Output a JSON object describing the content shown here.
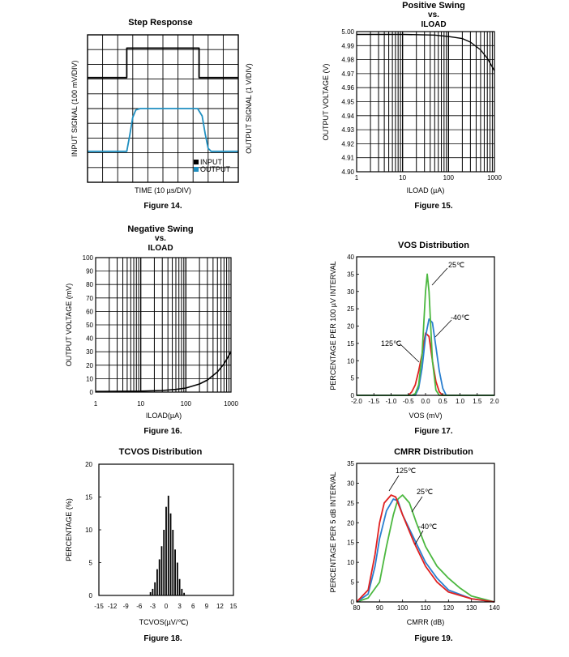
{
  "chart_data": [
    {
      "type": "line",
      "id": "fig14",
      "title": "Step Response",
      "xlabel": "TIME (10 µs/DIV)",
      "ylabel": "INPUT SIGNAL (100 mV/DIV)",
      "ylabel_right": "OUTPUT SIGNAL (1 V/DIV)",
      "figure_label": "Figure 14.",
      "xlim": [
        0,
        10
      ],
      "ylim": [
        0,
        10
      ],
      "legend": [
        "INPUT",
        "OUTPUT"
      ],
      "series": [
        {
          "name": "INPUT",
          "color": "#000000",
          "x": [
            0,
            2.6,
            2.6,
            7.4,
            7.4,
            10
          ],
          "y": [
            7.1,
            7.1,
            9.1,
            9.1,
            7.1,
            7.1
          ]
        },
        {
          "name": "OUTPUT",
          "color": "#1f8fc0",
          "x": [
            0,
            2.6,
            2.8,
            3.0,
            3.2,
            3.5,
            7.3,
            7.6,
            7.8,
            8.0,
            8.2,
            10
          ],
          "y": [
            2.1,
            2.1,
            3.2,
            4.4,
            4.9,
            5.0,
            5.0,
            4.5,
            3.3,
            2.3,
            2.1,
            2.1
          ]
        }
      ]
    },
    {
      "type": "line",
      "id": "fig15",
      "title_lines": [
        "Positive Swing",
        "vs.",
        "ILOAD"
      ],
      "xlabel": "ILOAD (µA)",
      "ylabel": "OUTPUT VOLTAGE (V)",
      "figure_label": "Figure 15.",
      "xscale": "log",
      "xlim": [
        1,
        1000
      ],
      "ylim": [
        4.9,
        5.0
      ],
      "xticks": [
        "1",
        "10",
        "100",
        "1000"
      ],
      "yticks": [
        "4.90",
        "4.91",
        "4.92",
        "4.93",
        "4.94",
        "4.95",
        "4.96",
        "4.97",
        "4.98",
        "4.99",
        "5.00"
      ],
      "series": [
        {
          "name": "swing",
          "color": "#000000",
          "x": [
            1,
            10,
            50,
            100,
            200,
            300,
            500,
            700,
            1000
          ],
          "y": [
            4.998,
            4.998,
            4.9975,
            4.9965,
            4.995,
            4.9925,
            4.987,
            4.981,
            4.972
          ]
        }
      ]
    },
    {
      "type": "line",
      "id": "fig16",
      "title_lines": [
        "Negative Swing",
        "vs.",
        "ILOAD"
      ],
      "xlabel": "ILOAD(µA)",
      "ylabel": "OUTPUT VOLTAGE (mV)",
      "figure_label": "Figure 16.",
      "xscale": "log",
      "xlim": [
        1,
        1000
      ],
      "ylim": [
        0,
        100
      ],
      "xticks": [
        "1",
        "10",
        "100",
        "1000"
      ],
      "yticks": [
        "0",
        "10",
        "20",
        "30",
        "40",
        "50",
        "60",
        "70",
        "80",
        "90",
        "100"
      ],
      "series": [
        {
          "name": "swing",
          "color": "#000000",
          "x": [
            1,
            10,
            30,
            60,
            100,
            200,
            300,
            500,
            700,
            1000
          ],
          "y": [
            0.5,
            0.7,
            1.2,
            2,
            3,
            6,
            9,
            15,
            21,
            30
          ]
        }
      ]
    },
    {
      "type": "line",
      "id": "fig17",
      "title": "VOS Distribution",
      "xlabel": "VOS (mV)",
      "ylabel": "PERCENTAGE PER 100 µV INTERVAL",
      "figure_label": "Figure 17.",
      "xlim": [
        -2.0,
        2.0
      ],
      "ylim": [
        0,
        40
      ],
      "xticks": [
        "-2.0",
        "-1.5",
        "-1.0",
        "-0.5",
        "0.0",
        "0.5",
        "1.0",
        "1.5",
        "2.0"
      ],
      "yticks": [
        "0",
        "5",
        "10",
        "15",
        "20",
        "25",
        "30",
        "35",
        "40"
      ],
      "annotations": [
        "25℃",
        "-40℃",
        "125℃"
      ],
      "series": [
        {
          "name": "125℃",
          "color": "#e02020",
          "x": [
            -2,
            -0.5,
            -0.4,
            -0.3,
            -0.2,
            -0.1,
            0.0,
            0.1,
            0.2,
            0.3,
            0.4,
            0.5,
            2
          ],
          "y": [
            0,
            0,
            1,
            3,
            7,
            12,
            18,
            17,
            10,
            4,
            1,
            0,
            0
          ]
        },
        {
          "name": "25℃",
          "color": "#4cb840",
          "x": [
            -2,
            -0.4,
            -0.3,
            -0.2,
            -0.1,
            0.0,
            0.05,
            0.1,
            0.2,
            0.3,
            0.4,
            2
          ],
          "y": [
            0,
            0,
            0.5,
            3,
            12,
            30,
            35,
            30,
            10,
            1.5,
            0,
            0
          ]
        },
        {
          "name": "-40℃",
          "color": "#2a7fd0",
          "x": [
            -2,
            -0.3,
            -0.2,
            -0.1,
            0.0,
            0.1,
            0.2,
            0.3,
            0.4,
            0.5,
            0.6,
            2
          ],
          "y": [
            0,
            0,
            2,
            8,
            17,
            22,
            21,
            14,
            7,
            2,
            0,
            0
          ]
        }
      ]
    },
    {
      "type": "bar",
      "id": "fig18",
      "title": "TCVOS Distribution",
      "xlabel": "TCVOS(µV/℃)",
      "ylabel": "PERCENTAGE (%)",
      "figure_label": "Figure 18.",
      "xlim": [
        -15,
        15
      ],
      "ylim": [
        0,
        20
      ],
      "xticks": [
        "-15",
        "-12",
        "-9",
        "-6",
        "-3",
        "0",
        "3",
        "6",
        "9",
        "12",
        "15"
      ],
      "yticks": [
        "0",
        "5",
        "10",
        "15",
        "20"
      ],
      "x": [
        -3.5,
        -3,
        -2.5,
        -2,
        -1.5,
        -1,
        -0.5,
        0,
        0.5,
        1,
        1.5,
        2,
        2.5,
        3,
        3.5,
        4
      ],
      "values": [
        0.5,
        1.0,
        2.0,
        4.0,
        5.5,
        7.5,
        10.0,
        13.5,
        15.2,
        12.5,
        10.0,
        7.0,
        5.0,
        2.5,
        1.0,
        0.4
      ]
    },
    {
      "type": "line",
      "id": "fig19",
      "title": "CMRR Distribution",
      "xlabel": "CMRR (dB)",
      "ylabel": "PERCENTAGE PER 5 dB INTERVAL",
      "figure_label": "Figure 19.",
      "xlim": [
        80,
        140
      ],
      "ylim": [
        0,
        35
      ],
      "xticks": [
        "80",
        "90",
        "100",
        "110",
        "120",
        "130",
        "140"
      ],
      "yticks": [
        "0",
        "5",
        "10",
        "15",
        "20",
        "25",
        "30",
        "35"
      ],
      "annotations": [
        "125℃",
        "25℃",
        "-40℃"
      ],
      "series": [
        {
          "name": "125℃",
          "color": "#e02020",
          "x": [
            80,
            85,
            88,
            90,
            92,
            95,
            97,
            100,
            105,
            110,
            115,
            120,
            130,
            140
          ],
          "y": [
            0,
            3,
            12,
            20,
            25,
            27,
            26.5,
            22,
            15,
            9,
            5,
            2.5,
            0.8,
            0
          ]
        },
        {
          "name": "-40℃",
          "color": "#2a7fd0",
          "x": [
            80,
            85,
            88,
            90,
            93,
            96,
            98,
            100,
            105,
            110,
            115,
            120,
            130,
            140
          ],
          "y": [
            0,
            2,
            9,
            16,
            23,
            26,
            25.5,
            22,
            16,
            10,
            6,
            3,
            0.8,
            0
          ]
        },
        {
          "name": "25℃",
          "color": "#4cb840",
          "x": [
            80,
            85,
            90,
            93,
            96,
            98,
            100,
            103,
            106,
            110,
            115,
            120,
            125,
            130,
            140
          ],
          "y": [
            0,
            1,
            5,
            14,
            22,
            26,
            27,
            25,
            20,
            14,
            9,
            6,
            3.5,
            1.5,
            0
          ]
        }
      ]
    }
  ]
}
